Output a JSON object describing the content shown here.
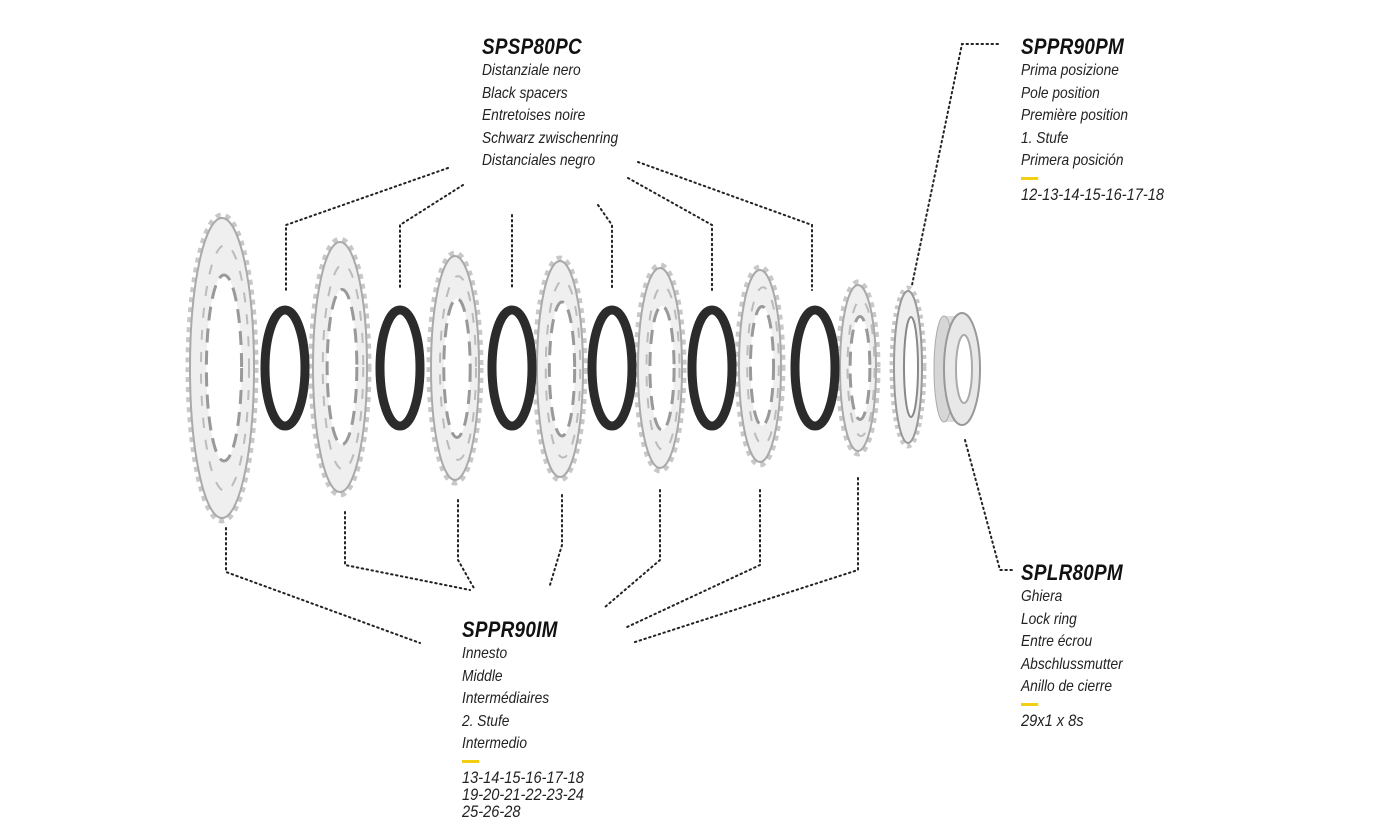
{
  "accent_color": "#f2cf12",
  "parts": {
    "spacer": {
      "code": "SPSP80PC",
      "names": [
        "Distanziale nero",
        "Black spacers",
        "Entretoises noire",
        "Schwarz zwischenring",
        "Distanciales negro"
      ]
    },
    "pole": {
      "code": "SPPR90PM",
      "names": [
        "Prima posizione",
        "Pole position",
        "Première position",
        "1. Stufe",
        "Primera posición"
      ],
      "sizes": [
        "12-13-14-15-16-17-18"
      ]
    },
    "middle": {
      "code": "SPPR90IM",
      "names": [
        "Innesto",
        "Middle",
        "Intermédiaires",
        "2. Stufe",
        "Intermedio"
      ],
      "sizes": [
        "13-14-15-16-17-18",
        "19-20-21-22-23-24",
        "25-26-28"
      ]
    },
    "lockring": {
      "code": "SPLR80PM",
      "names": [
        "Ghiera",
        "Lock ring",
        "Entre écrou",
        "Abschlussmutter",
        "Anillo de cierre"
      ],
      "sizes": [
        "29x1 x 8s"
      ]
    }
  }
}
